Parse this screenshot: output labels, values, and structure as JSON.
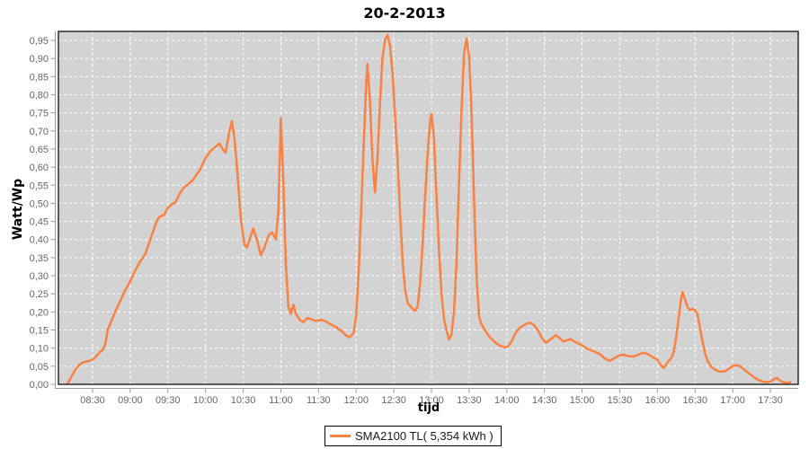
{
  "chart": {
    "title": "20-2-2013",
    "xlabel": "tijd",
    "ylabel": "Watt/Wp"
  },
  "legend": {
    "label": "SMA2100 TL( 5,354 kWh )"
  },
  "colors": {
    "series": "#fa8142",
    "plot_background": "#d3d3d3",
    "gridline": "#ffffff",
    "tick_label": "#666666",
    "axis_line": "#9a9a9a",
    "plot_border": "#2a2a2a"
  },
  "chart_data": {
    "type": "line",
    "title": "20-2-2013",
    "xlabel": "tijd",
    "ylabel": "Watt/Wp",
    "grid": true,
    "legend_position": "bottom-center",
    "x_ticks": [
      "08:30",
      "09:00",
      "09:30",
      "10:00",
      "10:30",
      "11:00",
      "11:30",
      "12:00",
      "12:30",
      "13:00",
      "13:30",
      "14:00",
      "14:30",
      "15:00",
      "15:30",
      "16:00",
      "16:30",
      "17:00",
      "17:30"
    ],
    "y_ticks": [
      "0,00",
      "0,05",
      "0,10",
      "0,15",
      "0,20",
      "0,25",
      "0,30",
      "0,35",
      "0,40",
      "0,45",
      "0,50",
      "0,55",
      "0,60",
      "0,65",
      "0,70",
      "0,75",
      "0,80",
      "0,85",
      "0,90",
      "0,95"
    ],
    "y_tick_values": [
      0,
      0.05,
      0.1,
      0.15,
      0.2,
      0.25,
      0.3,
      0.35,
      0.4,
      0.45,
      0.5,
      0.55,
      0.6,
      0.65,
      0.7,
      0.75,
      0.8,
      0.85,
      0.9,
      0.95
    ],
    "xlim": [
      "08:03",
      "17:52"
    ],
    "ylim": [
      0,
      0.975
    ],
    "series": [
      {
        "name": "SMA2100 TL( 5,354 kWh )",
        "color": "#fa8142",
        "points": [
          [
            "08:10",
            0.002
          ],
          [
            "08:13",
            0.02
          ],
          [
            "08:16",
            0.04
          ],
          [
            "08:19",
            0.052
          ],
          [
            "08:22",
            0.06
          ],
          [
            "08:26",
            0.064
          ],
          [
            "08:30",
            0.068
          ],
          [
            "08:33",
            0.078
          ],
          [
            "08:36",
            0.09
          ],
          [
            "08:38",
            0.095
          ],
          [
            "08:40",
            0.11
          ],
          [
            "08:42",
            0.15
          ],
          [
            "08:45",
            0.175
          ],
          [
            "08:48",
            0.2
          ],
          [
            "08:52",
            0.23
          ],
          [
            "08:56",
            0.26
          ],
          [
            "09:00",
            0.285
          ],
          [
            "09:04",
            0.315
          ],
          [
            "09:08",
            0.34
          ],
          [
            "09:12",
            0.36
          ],
          [
            "09:15",
            0.39
          ],
          [
            "09:18",
            0.42
          ],
          [
            "09:21",
            0.45
          ],
          [
            "09:23",
            0.462
          ],
          [
            "09:27",
            0.468
          ],
          [
            "09:30",
            0.488
          ],
          [
            "09:33",
            0.497
          ],
          [
            "09:36",
            0.503
          ],
          [
            "09:40",
            0.53
          ],
          [
            "09:43",
            0.545
          ],
          [
            "09:46",
            0.552
          ],
          [
            "09:50",
            0.565
          ],
          [
            "09:55",
            0.59
          ],
          [
            "10:00",
            0.625
          ],
          [
            "10:04",
            0.645
          ],
          [
            "10:07",
            0.653
          ],
          [
            "10:11",
            0.665
          ],
          [
            "10:14",
            0.648
          ],
          [
            "10:16",
            0.64
          ],
          [
            "10:19",
            0.7
          ],
          [
            "10:21",
            0.727
          ],
          [
            "10:23",
            0.68
          ],
          [
            "10:25",
            0.6
          ],
          [
            "10:28",
            0.46
          ],
          [
            "10:31",
            0.385
          ],
          [
            "10:33",
            0.378
          ],
          [
            "10:36",
            0.41
          ],
          [
            "10:38",
            0.43
          ],
          [
            "10:41",
            0.4
          ],
          [
            "10:44",
            0.357
          ],
          [
            "10:47",
            0.378
          ],
          [
            "10:50",
            0.41
          ],
          [
            "10:53",
            0.42
          ],
          [
            "10:56",
            0.4
          ],
          [
            "10:58",
            0.48
          ],
          [
            "11:00",
            0.735
          ],
          [
            "11:02",
            0.56
          ],
          [
            "11:04",
            0.33
          ],
          [
            "11:06",
            0.215
          ],
          [
            "11:08",
            0.195
          ],
          [
            "11:10",
            0.22
          ],
          [
            "11:12",
            0.195
          ],
          [
            "11:15",
            0.178
          ],
          [
            "11:18",
            0.172
          ],
          [
            "11:21",
            0.183
          ],
          [
            "11:24",
            0.18
          ],
          [
            "11:28",
            0.175
          ],
          [
            "11:32",
            0.178
          ],
          [
            "11:36",
            0.174
          ],
          [
            "11:40",
            0.165
          ],
          [
            "11:44",
            0.158
          ],
          [
            "11:48",
            0.148
          ],
          [
            "11:52",
            0.135
          ],
          [
            "11:55",
            0.13
          ],
          [
            "11:58",
            0.142
          ],
          [
            "12:00",
            0.19
          ],
          [
            "12:02",
            0.31
          ],
          [
            "12:04",
            0.48
          ],
          [
            "12:06",
            0.66
          ],
          [
            "12:08",
            0.83
          ],
          [
            "12:09",
            0.885
          ],
          [
            "12:11",
            0.78
          ],
          [
            "12:13",
            0.62
          ],
          [
            "12:15",
            0.53
          ],
          [
            "12:17",
            0.63
          ],
          [
            "12:19",
            0.78
          ],
          [
            "12:21",
            0.9
          ],
          [
            "12:23",
            0.952
          ],
          [
            "12:25",
            0.965
          ],
          [
            "12:27",
            0.935
          ],
          [
            "12:29",
            0.86
          ],
          [
            "12:31",
            0.74
          ],
          [
            "12:33",
            0.62
          ],
          [
            "12:35",
            0.47
          ],
          [
            "12:37",
            0.34
          ],
          [
            "12:39",
            0.26
          ],
          [
            "12:41",
            0.225
          ],
          [
            "12:44",
            0.212
          ],
          [
            "12:47",
            0.203
          ],
          [
            "12:49",
            0.215
          ],
          [
            "12:51",
            0.28
          ],
          [
            "12:53",
            0.39
          ],
          [
            "12:55",
            0.52
          ],
          [
            "12:57",
            0.64
          ],
          [
            "12:59",
            0.73
          ],
          [
            "13:00",
            0.747
          ],
          [
            "13:02",
            0.68
          ],
          [
            "13:04",
            0.52
          ],
          [
            "13:06",
            0.37
          ],
          [
            "13:08",
            0.25
          ],
          [
            "13:10",
            0.18
          ],
          [
            "13:12",
            0.148
          ],
          [
            "13:14",
            0.124
          ],
          [
            "13:16",
            0.138
          ],
          [
            "13:18",
            0.2
          ],
          [
            "13:20",
            0.34
          ],
          [
            "13:22",
            0.56
          ],
          [
            "13:24",
            0.76
          ],
          [
            "13:26",
            0.915
          ],
          [
            "13:28",
            0.955
          ],
          [
            "13:30",
            0.905
          ],
          [
            "13:32",
            0.74
          ],
          [
            "13:34",
            0.5
          ],
          [
            "13:36",
            0.29
          ],
          [
            "13:38",
            0.185
          ],
          [
            "13:40",
            0.165
          ],
          [
            "13:43",
            0.148
          ],
          [
            "13:46",
            0.132
          ],
          [
            "13:50",
            0.118
          ],
          [
            "13:54",
            0.108
          ],
          [
            "13:58",
            0.102
          ],
          [
            "14:01",
            0.105
          ],
          [
            "14:04",
            0.12
          ],
          [
            "14:07",
            0.142
          ],
          [
            "14:10",
            0.155
          ],
          [
            "14:13",
            0.162
          ],
          [
            "14:16",
            0.168
          ],
          [
            "14:19",
            0.17
          ],
          [
            "14:22",
            0.163
          ],
          [
            "14:25",
            0.148
          ],
          [
            "14:28",
            0.128
          ],
          [
            "14:31",
            0.115
          ],
          [
            "14:34",
            0.122
          ],
          [
            "14:37",
            0.13
          ],
          [
            "14:39",
            0.136
          ],
          [
            "14:42",
            0.128
          ],
          [
            "14:45",
            0.118
          ],
          [
            "14:48",
            0.122
          ],
          [
            "14:51",
            0.125
          ],
          [
            "14:54",
            0.118
          ],
          [
            "14:57",
            0.113
          ],
          [
            "15:00",
            0.108
          ],
          [
            "15:05",
            0.097
          ],
          [
            "15:10",
            0.09
          ],
          [
            "15:14",
            0.084
          ],
          [
            "15:18",
            0.072
          ],
          [
            "15:22",
            0.065
          ],
          [
            "15:26",
            0.073
          ],
          [
            "15:30",
            0.08
          ],
          [
            "15:33",
            0.082
          ],
          [
            "15:37",
            0.078
          ],
          [
            "15:41",
            0.077
          ],
          [
            "15:45",
            0.082
          ],
          [
            "15:48",
            0.087
          ],
          [
            "15:52",
            0.084
          ],
          [
            "15:56",
            0.076
          ],
          [
            "16:00",
            0.068
          ],
          [
            "16:03",
            0.052
          ],
          [
            "16:05",
            0.045
          ],
          [
            "16:07",
            0.055
          ],
          [
            "16:09",
            0.065
          ],
          [
            "16:11",
            0.072
          ],
          [
            "16:13",
            0.09
          ],
          [
            "16:15",
            0.13
          ],
          [
            "16:17",
            0.185
          ],
          [
            "16:19",
            0.24
          ],
          [
            "16:20",
            0.255
          ],
          [
            "16:22",
            0.235
          ],
          [
            "16:24",
            0.213
          ],
          [
            "16:26",
            0.205
          ],
          [
            "16:28",
            0.208
          ],
          [
            "16:30",
            0.205
          ],
          [
            "16:32",
            0.193
          ],
          [
            "16:34",
            0.155
          ],
          [
            "16:36",
            0.118
          ],
          [
            "16:38",
            0.085
          ],
          [
            "16:40",
            0.065
          ],
          [
            "16:43",
            0.048
          ],
          [
            "16:46",
            0.04
          ],
          [
            "16:50",
            0.035
          ],
          [
            "16:54",
            0.036
          ],
          [
            "16:58",
            0.046
          ],
          [
            "17:01",
            0.052
          ],
          [
            "17:04",
            0.053
          ],
          [
            "17:07",
            0.047
          ],
          [
            "17:10",
            0.038
          ],
          [
            "17:13",
            0.03
          ],
          [
            "17:16",
            0.022
          ],
          [
            "17:19",
            0.015
          ],
          [
            "17:22",
            0.01
          ],
          [
            "17:25",
            0.007
          ],
          [
            "17:28",
            0.006
          ],
          [
            "17:31",
            0.009
          ],
          [
            "17:33",
            0.015
          ],
          [
            "17:35",
            0.018
          ],
          [
            "17:37",
            0.012
          ],
          [
            "17:40",
            0.006
          ],
          [
            "17:43",
            0.004
          ],
          [
            "17:46",
            0.006
          ]
        ]
      }
    ]
  }
}
